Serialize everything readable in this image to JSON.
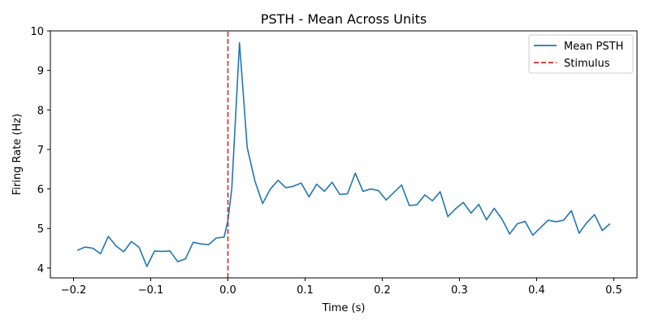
{
  "chart_data": {
    "type": "line",
    "title": "PSTH - Mean Across Units",
    "xlabel": "Time (s)",
    "ylabel": "Firing Rate (Hz)",
    "xlim": [
      -0.23,
      0.53
    ],
    "ylim": [
      3.75,
      10.0
    ],
    "xticks": [
      -0.2,
      -0.1,
      0.0,
      0.1,
      0.2,
      0.3,
      0.4,
      0.5
    ],
    "xtick_labels": [
      "−0.2",
      "−0.1",
      "0.0",
      "0.1",
      "0.2",
      "0.3",
      "0.4",
      "0.5"
    ],
    "yticks": [
      4,
      5,
      6,
      7,
      8,
      9,
      10
    ],
    "ytick_labels": [
      "4",
      "5",
      "6",
      "7",
      "8",
      "9",
      "10"
    ],
    "grid": false,
    "legend_position": "top-right",
    "colors": {
      "series": "#1f77b4",
      "stimulus": "#d62728"
    },
    "series": [
      {
        "name": "Mean PSTH",
        "style": "solid",
        "x": [
          -0.195,
          -0.185,
          -0.175,
          -0.165,
          -0.155,
          -0.145,
          -0.135,
          -0.125,
          -0.115,
          -0.105,
          -0.095,
          -0.085,
          -0.075,
          -0.065,
          -0.055,
          -0.045,
          -0.035,
          -0.025,
          -0.015,
          -0.005,
          0.0,
          0.005,
          0.015,
          0.025,
          0.035,
          0.045,
          0.055,
          0.065,
          0.075,
          0.085,
          0.095,
          0.105,
          0.115,
          0.125,
          0.135,
          0.145,
          0.155,
          0.165,
          0.175,
          0.185,
          0.195,
          0.205,
          0.215,
          0.225,
          0.235,
          0.245,
          0.255,
          0.265,
          0.275,
          0.285,
          0.295,
          0.305,
          0.315,
          0.325,
          0.335,
          0.345,
          0.355,
          0.365,
          0.375,
          0.385,
          0.395,
          0.405,
          0.415,
          0.425,
          0.435,
          0.445,
          0.455,
          0.465,
          0.475,
          0.485,
          0.495
        ],
        "y": [
          4.45,
          4.53,
          4.5,
          4.36,
          4.8,
          4.56,
          4.41,
          4.67,
          4.52,
          4.04,
          4.43,
          4.42,
          4.43,
          4.16,
          4.23,
          4.65,
          4.61,
          4.59,
          4.76,
          4.78,
          5.2,
          6.0,
          9.7,
          7.05,
          6.2,
          5.63,
          6.0,
          6.22,
          6.03,
          6.07,
          6.15,
          5.8,
          6.12,
          5.94,
          6.17,
          5.86,
          5.88,
          6.4,
          5.94,
          6.0,
          5.96,
          5.72,
          5.91,
          6.1,
          5.58,
          5.6,
          5.85,
          5.7,
          5.93,
          5.3,
          5.5,
          5.66,
          5.39,
          5.61,
          5.22,
          5.51,
          5.24,
          4.86,
          5.12,
          5.18,
          4.83,
          5.02,
          5.21,
          5.17,
          5.21,
          5.45,
          4.88,
          5.15,
          5.35,
          4.95,
          5.12
        ]
      },
      {
        "name": "Stimulus",
        "style": "dashed",
        "x": [
          0.0,
          0.0
        ],
        "y": [
          3.75,
          10.0
        ]
      }
    ]
  }
}
